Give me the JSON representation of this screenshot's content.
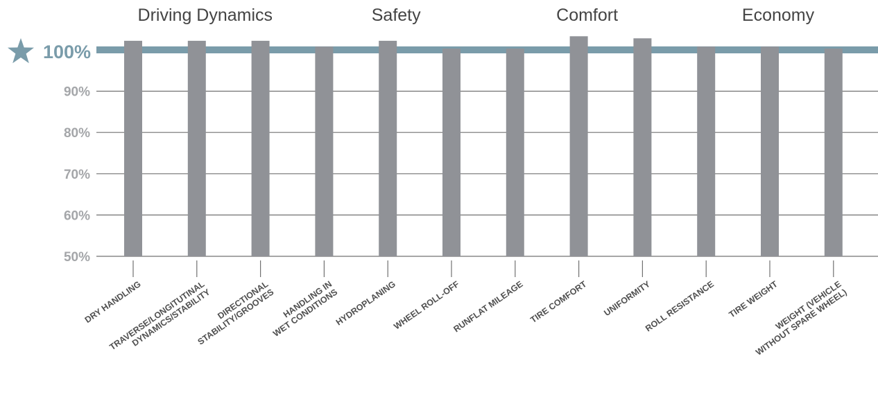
{
  "colors": {
    "bar": "#909297",
    "reference_line": "#7a9caa",
    "reference_text": "#7a9caa",
    "grid": "#707070",
    "tick_label": "#a4a6a9",
    "group_label": "#444444",
    "category_label": "#4f4f4f"
  },
  "reference": {
    "icon": "star-icon",
    "label": "100%",
    "value": 100
  },
  "chart_data": {
    "type": "bar",
    "title": "",
    "xlabel": "",
    "ylabel": "",
    "ylim": [
      50,
      100
    ],
    "yticks": [
      50,
      60,
      70,
      80,
      90
    ],
    "ytick_labels": [
      "50%",
      "60%",
      "70%",
      "80%",
      "90%"
    ],
    "grid": true,
    "groups": [
      {
        "label": "Driving Dynamics",
        "categories": [
          0,
          1,
          2
        ]
      },
      {
        "label": "Safety",
        "categories": [
          3,
          4,
          5
        ]
      },
      {
        "label": "Comfort",
        "categories": [
          6,
          7,
          8
        ]
      },
      {
        "label": "Economy",
        "categories": [
          9,
          10,
          11
        ]
      }
    ],
    "categories": [
      [
        "DRY HANDLING"
      ],
      [
        "TRAVERSE/LONGITUTINAL",
        "DYNAMICS/STABILITY"
      ],
      [
        "DIRECTIONAL",
        "STABILITY/GROOVES"
      ],
      [
        "HANDLING IN",
        "WET CONDITIONS"
      ],
      [
        "HYDROPLANING"
      ],
      [
        "WHEEL ROLL-OFF"
      ],
      [
        "RUNFLAT MILEAGE"
      ],
      [
        "TIRE COMFORT"
      ],
      [
        "UNIFORMITY"
      ],
      [
        "ROLL RESISTANCE"
      ],
      [
        "TIRE WEIGHT"
      ],
      [
        "WEIGHT (VEHICLE",
        "WITHOUT SPARE WHEEL)"
      ]
    ],
    "values": [
      102.2,
      102.2,
      102.2,
      100.8,
      102.2,
      100.3,
      100.3,
      103.3,
      102.8,
      100.8,
      100.8,
      100.3
    ]
  }
}
